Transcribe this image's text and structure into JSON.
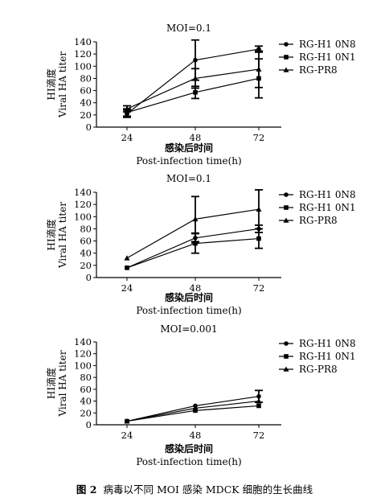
{
  "chart_data": [
    {
      "type": "line",
      "title": "MOI=0.1",
      "xlabel_cn": "感染后时间",
      "xlabel": "Post-infection time(h)",
      "ylabel_cn": "HI滴度",
      "ylabel": "Viral HA titer",
      "x": [
        24,
        48,
        72
      ],
      "x_ticks": [
        "24",
        "48",
        "72"
      ],
      "ylim": [
        0,
        140
      ],
      "y_ticks": [
        "0",
        "20",
        "40",
        "60",
        "80",
        "100",
        "120",
        "140"
      ],
      "legend_position": "right",
      "series": [
        {
          "name": "RG-H1 0N8",
          "marker": "circle",
          "values": [
            22,
            110,
            128
          ],
          "err": [
            6,
            33,
            5
          ]
        },
        {
          "name": "RG-H1 0N1",
          "marker": "square",
          "values": [
            24,
            57,
            80
          ],
          "err": [
            6,
            10,
            32
          ]
        },
        {
          "name": "RG-PR8",
          "marker": "triangle",
          "values": [
            30,
            80,
            95
          ],
          "err": [
            5,
            16,
            30
          ]
        }
      ]
    },
    {
      "type": "line",
      "title": "MOI=0.1",
      "xlabel_cn": "感染后时间",
      "xlabel": "Post-infection time(h)",
      "ylabel_cn": "HI滴度",
      "ylabel": "Viral HA titer",
      "x": [
        24,
        48,
        72
      ],
      "x_ticks": [
        "24",
        "48",
        "72"
      ],
      "ylim": [
        0,
        140
      ],
      "y_ticks": [
        "0",
        "20",
        "40",
        "60",
        "80",
        "100",
        "120",
        "140"
      ],
      "legend_position": "right",
      "series": [
        {
          "name": "RG-H1 0N8",
          "marker": "circle",
          "values": [
            16,
            65,
            80
          ],
          "err": [
            0,
            8,
            6
          ]
        },
        {
          "name": "RG-H1 0N1",
          "marker": "square",
          "values": [
            16,
            56,
            64
          ],
          "err": [
            0,
            16,
            16
          ]
        },
        {
          "name": "RG-PR8",
          "marker": "triangle",
          "values": [
            32,
            96,
            112
          ],
          "err": [
            0,
            37,
            32
          ]
        }
      ]
    },
    {
      "type": "line",
      "title": "MOI=0.001",
      "xlabel_cn": "感染后时间",
      "xlabel": "Post-infection time(h)",
      "ylabel_cn": "HI滴度",
      "ylabel": "Viral HA titer",
      "x": [
        24,
        48,
        72
      ],
      "x_ticks": [
        "24",
        "48",
        "72"
      ],
      "ylim": [
        0,
        140
      ],
      "y_ticks": [
        "0",
        "20",
        "40",
        "60",
        "80",
        "100",
        "120",
        "140"
      ],
      "legend_position": "right",
      "series": [
        {
          "name": "RG-H1 0N8",
          "marker": "circle",
          "values": [
            6,
            32,
            48
          ],
          "err": [
            0,
            0,
            10
          ]
        },
        {
          "name": "RG-H1 0N1",
          "marker": "square",
          "values": [
            6,
            24,
            32
          ],
          "err": [
            0,
            0,
            0
          ]
        },
        {
          "name": "RG-PR8",
          "marker": "triangle",
          "values": [
            6,
            28,
            40
          ],
          "err": [
            0,
            0,
            0
          ]
        }
      ]
    }
  ],
  "caption": {
    "label": "图 2",
    "text": "病毒以不同 MOI 感染 MDCK 细胞的生长曲线"
  }
}
